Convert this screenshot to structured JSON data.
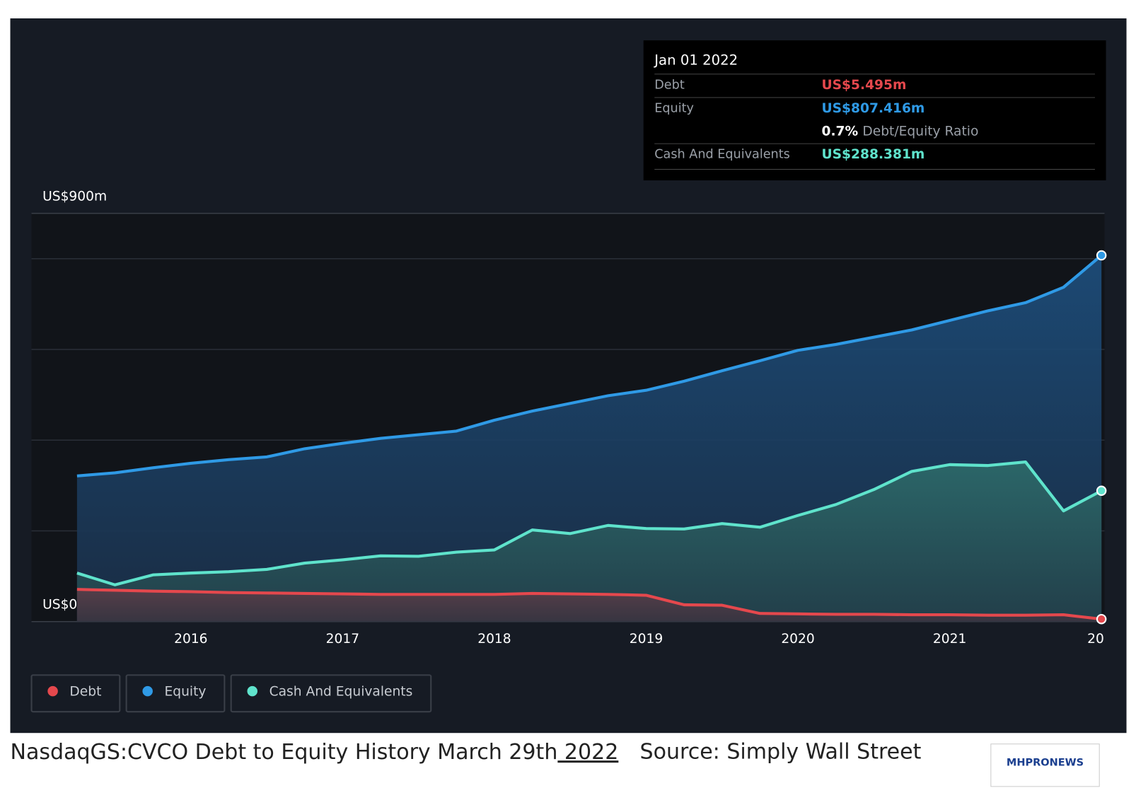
{
  "chart_data": {
    "type": "area",
    "x": [
      2015.25,
      2015.5,
      2015.75,
      2016,
      2016.25,
      2016.5,
      2016.75,
      2017,
      2017.25,
      2017.5,
      2017.75,
      2018,
      2018.25,
      2018.5,
      2018.75,
      2019,
      2019.25,
      2019.5,
      2019.75,
      2020,
      2020.25,
      2020.5,
      2020.75,
      2021,
      2021.25,
      2021.5,
      2021.75,
      2022
    ],
    "series": [
      {
        "name": "Debt",
        "color": "#e5484d",
        "values": [
          71,
          69,
          67,
          66,
          64,
          63,
          62,
          61,
          60,
          60,
          60,
          60,
          62,
          61,
          60,
          58,
          37,
          36,
          18,
          17,
          16,
          16,
          15,
          15,
          14,
          14,
          15,
          5.495
        ]
      },
      {
        "name": "Equity",
        "color": "#2f9ae6",
        "values": [
          321,
          328,
          339,
          349,
          357,
          363,
          381,
          393,
          404,
          412,
          420,
          444,
          464,
          481,
          498,
          510,
          530,
          553,
          575,
          598,
          611,
          627,
          643,
          664,
          685,
          703,
          737,
          807.416
        ]
      },
      {
        "name": "Cash And Equivalents",
        "color": "#5fe3cc",
        "values": [
          107,
          81,
          103,
          107,
          110,
          115,
          129,
          136,
          145,
          144,
          153,
          158,
          202,
          194,
          212,
          205,
          204,
          216,
          208,
          234,
          258,
          291,
          331,
          346,
          344,
          352,
          244,
          288.381
        ]
      }
    ],
    "xlim": [
      2014.95,
      2022.02
    ],
    "xticks": [
      2016,
      2017,
      2018,
      2019,
      2020,
      2021,
      {
        "value": 2022,
        "label": "20"
      }
    ],
    "ylim": [
      0,
      900
    ],
    "yticks": [
      {
        "value": 0,
        "label": "US$0"
      },
      {
        "value": 900,
        "label": "US$900m"
      }
    ],
    "grid_values": [
      200,
      400,
      600,
      800
    ],
    "grid": true,
    "legend": "bottom-left",
    "tooltip": {
      "title": "Jan 01 2022",
      "rows": [
        {
          "label": "Debt",
          "value": "US$5.495m"
        },
        {
          "label": "Equity",
          "value": "US$807.416m"
        },
        {
          "label": "Cash And Equivalents",
          "value": "US$288.381m"
        }
      ],
      "ratio": "0.7%",
      "ratio_label": "Debt/Equity Ratio"
    }
  },
  "caption": {
    "text": "NasdaqGS:CVCO Debt to Equity History March 29th",
    "underlined": " 2022",
    "source": "Source: Simply Wall Street",
    "logo": "MHPRONEWS"
  }
}
